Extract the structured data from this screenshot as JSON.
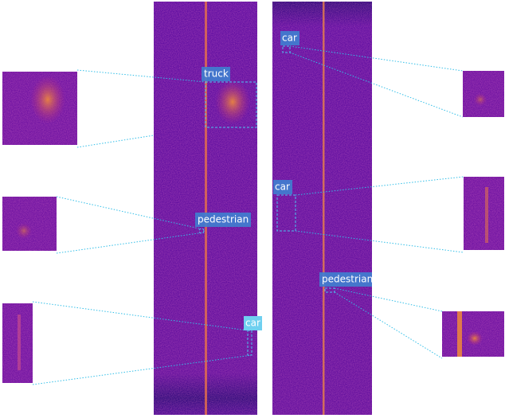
{
  "detections": [
    {
      "label": "truck"
    },
    {
      "label": "pedestrian"
    },
    {
      "label": "car"
    },
    {
      "label": "car"
    },
    {
      "label": "car"
    },
    {
      "label": "pedestrian"
    }
  ]
}
